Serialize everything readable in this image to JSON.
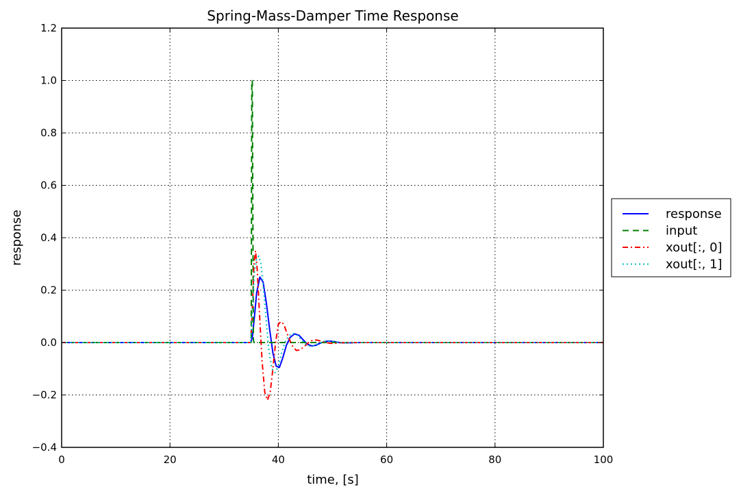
{
  "chart_data": {
    "type": "line",
    "title": "Spring-Mass-Damper Time Response",
    "xlabel": "time, [s]",
    "ylabel": "response",
    "xlim": [
      0,
      100
    ],
    "ylim": [
      -0.4,
      1.2
    ],
    "xticks": [
      0,
      20,
      40,
      60,
      80,
      100
    ],
    "xtick_labels": [
      "0",
      "20",
      "40",
      "60",
      "80",
      "100"
    ],
    "yticks": [
      -0.4,
      -0.2,
      0.0,
      0.2,
      0.4,
      0.6,
      0.8,
      1.0,
      1.2
    ],
    "ytick_labels": [
      "−0.4",
      "−0.2",
      "0.0",
      "0.2",
      "0.4",
      "0.6",
      "0.8",
      "1.0",
      "1.2"
    ],
    "grid": true,
    "legend_position": "outside-right",
    "series": [
      {
        "name": "response",
        "color": "#0000ff",
        "style": "solid",
        "x": [
          0,
          34.9,
          35.2,
          35.6,
          36.0,
          36.6,
          37.2,
          37.8,
          38.4,
          39.0,
          39.6,
          40.2,
          40.8,
          41.5,
          42.2,
          43.0,
          43.8,
          44.6,
          45.4,
          46.2,
          47.0,
          47.8,
          48.6,
          49.4,
          50.2,
          51.0,
          51.8,
          53.0,
          55.0,
          58.0,
          100
        ],
        "y": [
          0,
          0,
          0.02,
          0.1,
          0.19,
          0.25,
          0.23,
          0.15,
          0.05,
          -0.04,
          -0.09,
          -0.095,
          -0.06,
          -0.01,
          0.02,
          0.033,
          0.028,
          0.01,
          -0.007,
          -0.013,
          -0.01,
          -0.002,
          0.004,
          0.006,
          0.004,
          0.001,
          -0.001,
          -0.001,
          0,
          0,
          0
        ]
      },
      {
        "name": "input",
        "color": "#008000",
        "style": "dashed",
        "x": [
          0,
          35.0,
          35.1,
          35.2,
          35.4,
          35.5,
          100
        ],
        "y": [
          0,
          0,
          1.0,
          1.0,
          0.01,
          0,
          0
        ]
      },
      {
        "name": "xout[:, 0]",
        "color": "#ff0000",
        "style": "dashdot",
        "x": [
          0,
          34.9,
          35.2,
          35.5,
          35.8,
          36.1,
          36.5,
          37.0,
          37.5,
          38.0,
          38.5,
          39.0,
          39.5,
          40.0,
          40.5,
          41.0,
          41.7,
          42.5,
          43.3,
          44.0,
          44.8,
          45.6,
          46.4,
          47.2,
          48.0,
          48.8,
          49.6,
          50.5,
          51.5,
          53.0,
          56.0,
          100
        ],
        "y": [
          0,
          0,
          0.12,
          0.3,
          0.35,
          0.28,
          0.12,
          -0.07,
          -0.19,
          -0.22,
          -0.19,
          -0.1,
          0.0,
          0.07,
          0.08,
          0.07,
          0.03,
          -0.01,
          -0.03,
          -0.028,
          -0.015,
          0.0,
          0.01,
          0.009,
          0.005,
          0.0,
          -0.003,
          -0.003,
          -0.001,
          0,
          0,
          0
        ]
      },
      {
        "name": "xout[:, 1]",
        "color": "#00bfbf",
        "style": "dotted",
        "x": [
          0,
          34.9,
          35.2,
          35.6,
          36.0,
          36.4,
          36.8,
          37.2,
          37.7,
          38.2,
          38.8,
          39.4,
          40.0,
          40.6,
          41.2,
          41.9,
          42.6,
          43.4,
          44.2,
          45.0,
          45.8,
          46.6,
          47.4,
          48.2,
          49.0,
          49.8,
          50.6,
          51.6,
          53.0,
          56.0,
          100
        ],
        "y": [
          0,
          0,
          0.12,
          0.27,
          0.32,
          0.33,
          0.3,
          0.22,
          0.1,
          -0.02,
          -0.1,
          -0.115,
          -0.09,
          -0.04,
          0.0,
          0.025,
          0.035,
          0.03,
          0.012,
          -0.006,
          -0.014,
          -0.012,
          -0.004,
          0.003,
          0.006,
          0.005,
          0.002,
          -0.001,
          0,
          0,
          0
        ]
      }
    ]
  }
}
